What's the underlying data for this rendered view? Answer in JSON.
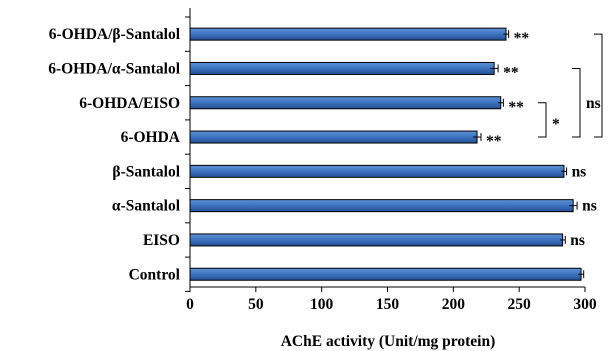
{
  "chart_data": {
    "type": "bar",
    "orientation": "horizontal",
    "xlabel": "AChE activity (Unit/mg protein)",
    "xlim": [
      0,
      300
    ],
    "xticks": [
      0,
      50,
      100,
      150,
      200,
      250,
      300
    ],
    "categories": [
      "6-OHDA/β-Santalol",
      "6-OHDA/α-Santalol",
      "6-OHDA/EISO",
      "6-OHDA",
      "β-Santalol",
      "α-Santalol",
      "EISO",
      "Control"
    ],
    "values": [
      240,
      231,
      236,
      218,
      284,
      291,
      283,
      297
    ],
    "errors": [
      2,
      3,
      2,
      3,
      2,
      3,
      2,
      2
    ],
    "bar_annotations": [
      "**",
      "**",
      "**",
      "**",
      "ns",
      "ns",
      "ns",
      ""
    ],
    "brackets": [
      {
        "between": [
          "6-OHDA/EISO",
          "6-OHDA"
        ],
        "label": "*"
      },
      {
        "between": [
          "6-OHDA/α-Santalol",
          "6-OHDA"
        ],
        "label": "ns"
      },
      {
        "between": [
          "6-OHDA/β-Santalol",
          "6-OHDA"
        ],
        "label": ""
      }
    ],
    "bar_color": "#3d72bf",
    "grid": false,
    "legend": "none"
  }
}
